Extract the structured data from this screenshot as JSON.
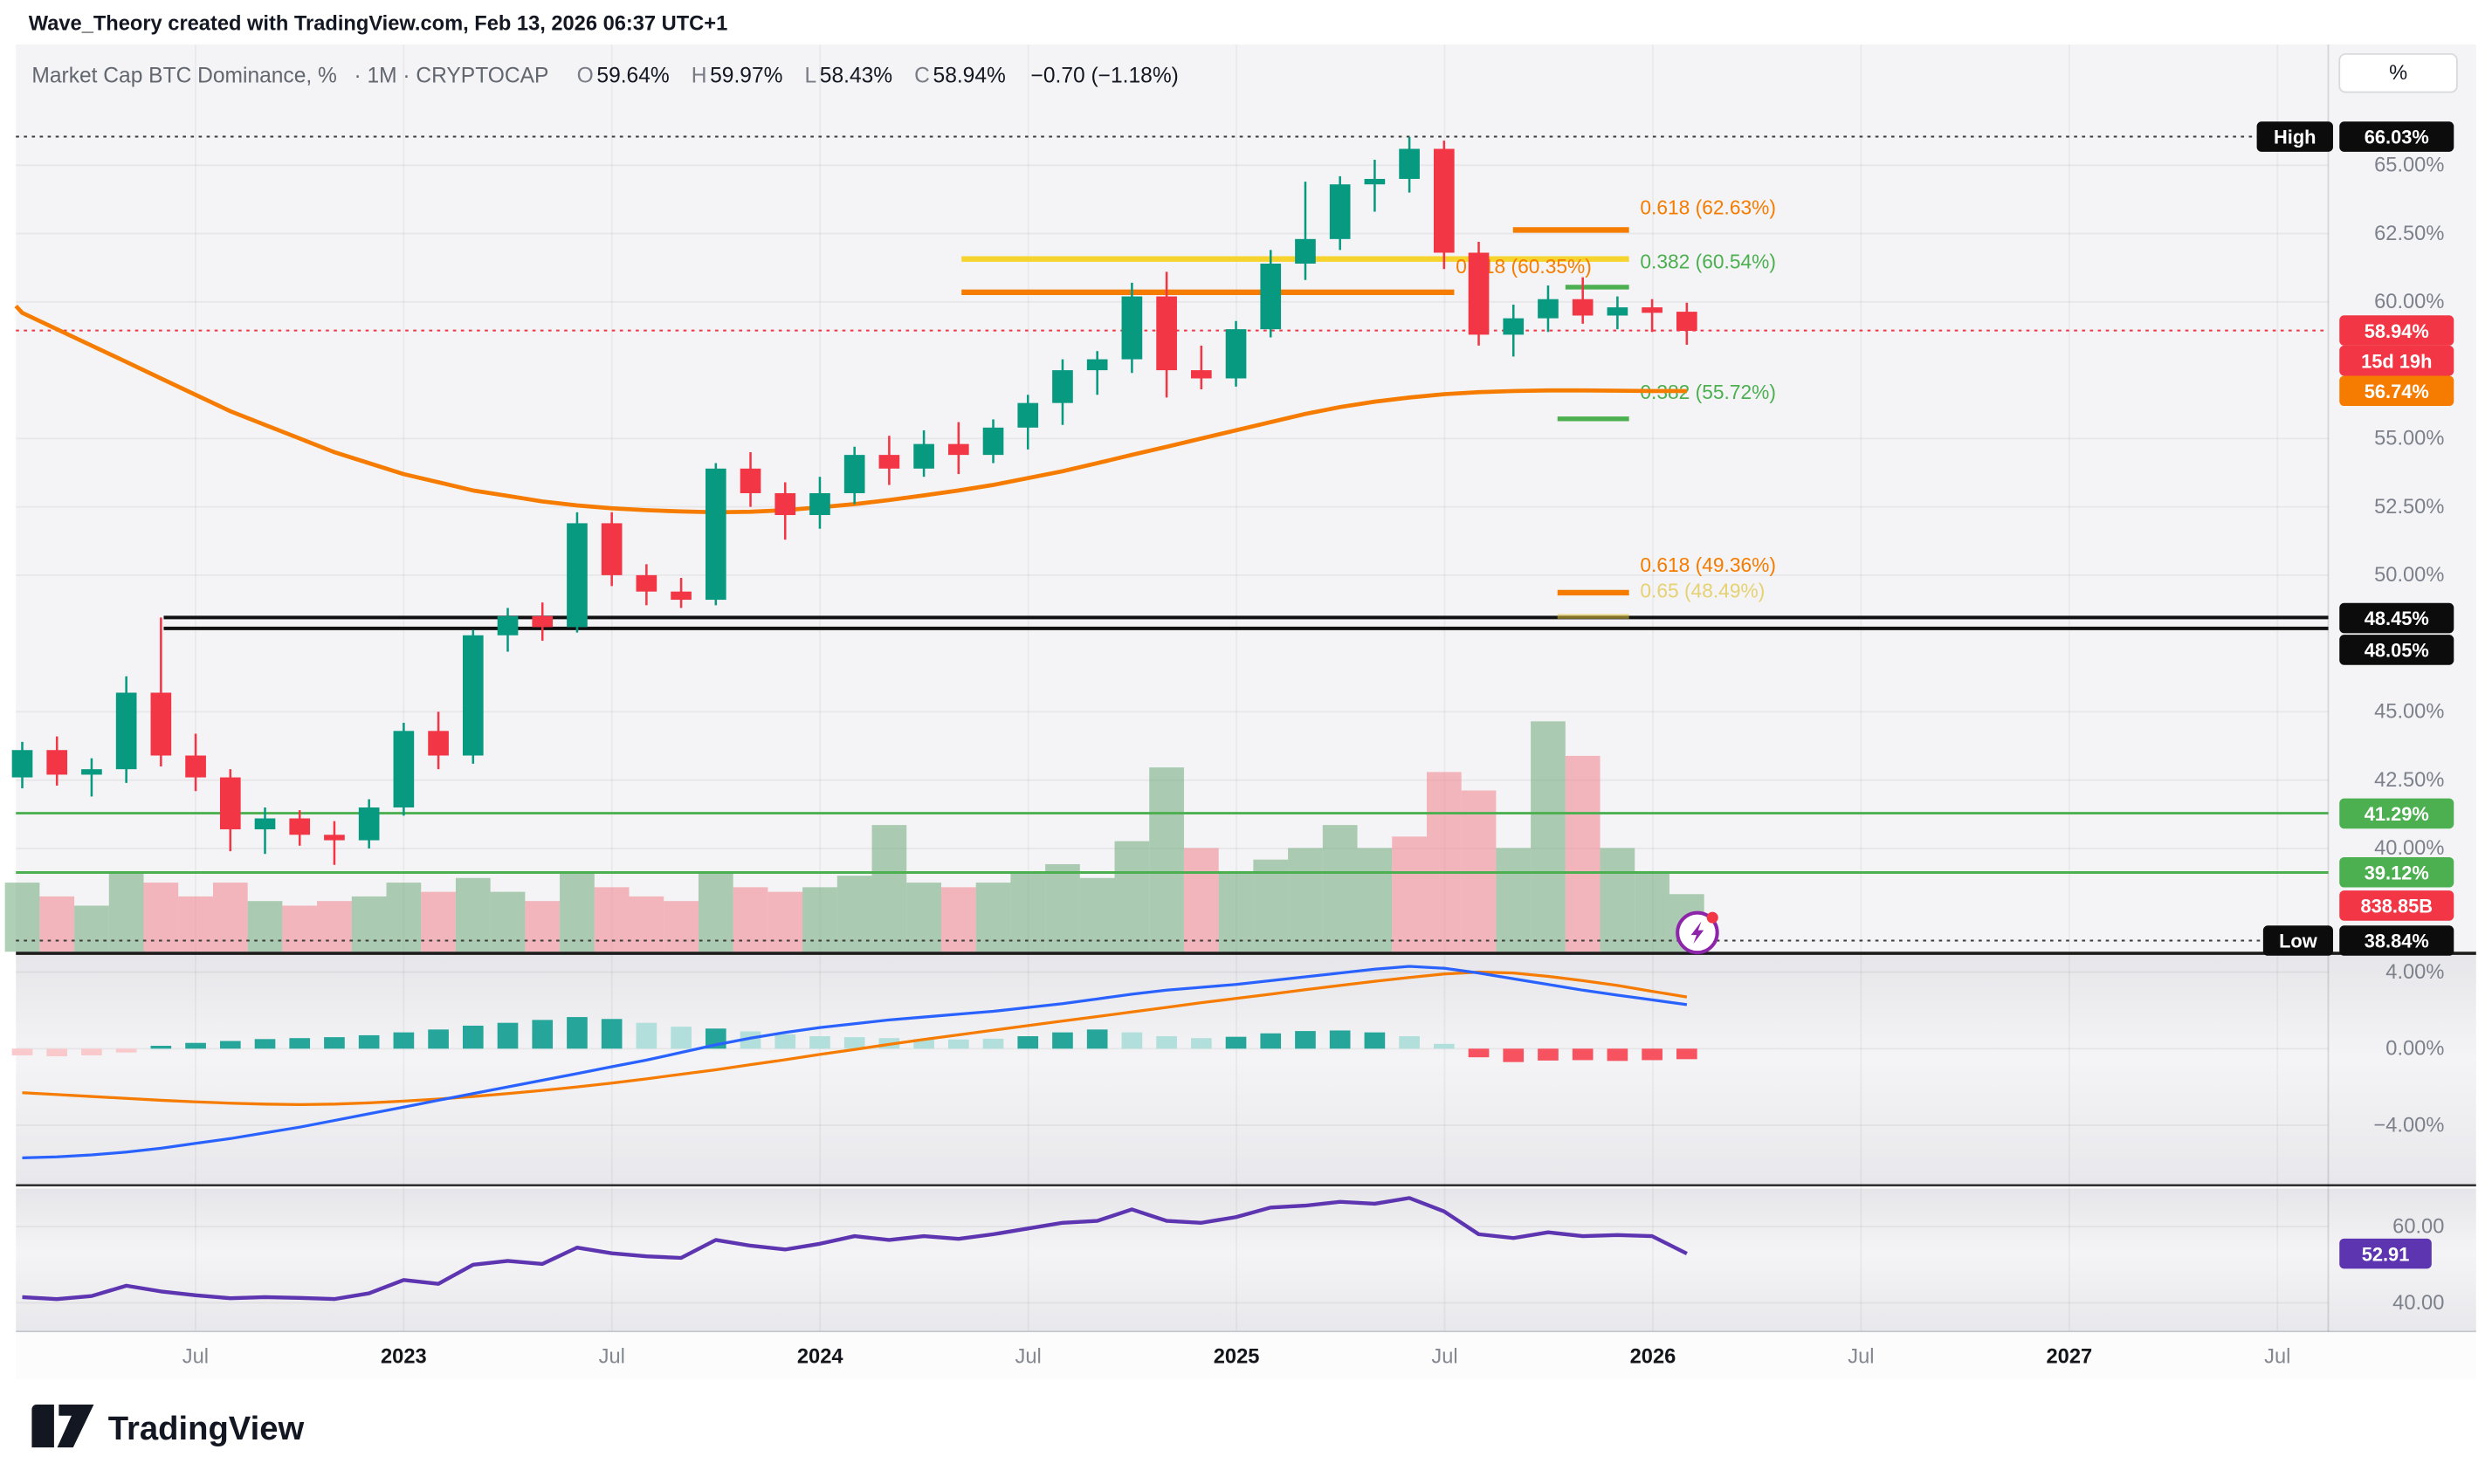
{
  "watermark": "Wave_Theory created with TradingView.com, Feb 13, 2026 06:37 UTC+1",
  "legend": {
    "symbol": "Market Cap BTC Dominance, %",
    "meta": "· 1M · CRYPTOCAP",
    "o_label": "O",
    "o_value": "59.64%",
    "h_label": "H",
    "h_value": "59.97%",
    "l_label": "L",
    "l_value": "58.43%",
    "c_label": "C",
    "c_value": "58.94%",
    "change": "−0.70 (−1.18%)"
  },
  "price_scale": {
    "unit_button": "%",
    "ticks": [
      {
        "text": "65.00%",
        "price": 65
      },
      {
        "text": "62.50%",
        "price": 62.5
      },
      {
        "text": "60.00%",
        "price": 60
      },
      {
        "text": "55.00%",
        "price": 55
      },
      {
        "text": "52.50%",
        "price": 52.5
      },
      {
        "text": "50.00%",
        "price": 50
      },
      {
        "text": "45.00%",
        "price": 45
      },
      {
        "text": "42.50%",
        "price": 42.5
      },
      {
        "text": "40.00%",
        "price": 40
      }
    ],
    "badges": [
      {
        "text": "High",
        "y": 86,
        "bg": "#0c0c0c",
        "x": 1420,
        "w": 48
      },
      {
        "text": "66.03%",
        "y": 86,
        "bg": "#0c0c0c"
      },
      {
        "text": "58.94%",
        "y": 208,
        "bg": "#f23645"
      },
      {
        "text": "15d 19h",
        "y": 227,
        "bg": "#f23645"
      },
      {
        "text": "56.74%",
        "y": 246,
        "bg": "#f57c00"
      },
      {
        "text": "48.45%",
        "y": 389,
        "bg": "#0c0c0c"
      },
      {
        "text": "48.05%",
        "y": 409,
        "bg": "#0c0c0c"
      },
      {
        "text": "41.29%",
        "y": 512,
        "bg": "#4caf50"
      },
      {
        "text": "39.12%",
        "y": 549,
        "bg": "#4caf50"
      },
      {
        "text": "838.85B",
        "y": 570,
        "bg": "#f23645"
      },
      {
        "text": "Low",
        "y": 592,
        "bg": "#0c0c0c",
        "x": 1424,
        "w": 44
      },
      {
        "text": "38.84%",
        "y": 592,
        "bg": "#0c0c0c"
      }
    ]
  },
  "time_axis": {
    "labels": [
      {
        "text": "Jul",
        "x": 123,
        "major": false
      },
      {
        "text": "2023",
        "x": 254,
        "major": true
      },
      {
        "text": "Jul",
        "x": 385,
        "major": false
      },
      {
        "text": "2024",
        "x": 516,
        "major": true
      },
      {
        "text": "Jul",
        "x": 647,
        "major": false
      },
      {
        "text": "2025",
        "x": 778,
        "major": true
      },
      {
        "text": "Jul",
        "x": 909,
        "major": false
      },
      {
        "text": "2026",
        "x": 1040,
        "major": true
      },
      {
        "text": "Jul",
        "x": 1171,
        "major": false
      },
      {
        "text": "2027",
        "x": 1302,
        "major": true
      },
      {
        "text": "Jul",
        "x": 1433,
        "major": false
      }
    ]
  },
  "footer": {
    "logo_text": "TradingView"
  },
  "chart_data": [
    {
      "type": "candlestick",
      "title": "Market Cap BTC Dominance, % · 1M · CRYPTOCAP",
      "interval": "1M",
      "start_month": "2022-02",
      "high": 66.03,
      "low": 38.84,
      "last_close": 58.94,
      "countdown": "15d 19h",
      "ohlc_header": {
        "o": 59.64,
        "h": 59.97,
        "l": 58.43,
        "c": 58.94,
        "change": -0.7,
        "change_pct": -1.18
      },
      "candles": [
        [
          42.6,
          43.9,
          42.2,
          43.6
        ],
        [
          43.6,
          44.1,
          42.3,
          42.7
        ],
        [
          42.7,
          43.3,
          41.9,
          42.9
        ],
        [
          42.9,
          46.3,
          42.4,
          45.7
        ],
        [
          45.7,
          48.45,
          43.0,
          43.4
        ],
        [
          43.4,
          44.2,
          42.1,
          42.6
        ],
        [
          42.6,
          42.9,
          39.9,
          40.7
        ],
        [
          40.7,
          41.5,
          39.8,
          41.1
        ],
        [
          41.1,
          41.4,
          40.1,
          40.5
        ],
        [
          40.5,
          41.0,
          39.4,
          40.3
        ],
        [
          40.3,
          41.8,
          40.0,
          41.5
        ],
        [
          41.5,
          44.6,
          41.2,
          44.3
        ],
        [
          44.3,
          45.0,
          42.9,
          43.4
        ],
        [
          43.4,
          48.0,
          43.1,
          47.8
        ],
        [
          47.8,
          48.8,
          47.2,
          48.5
        ],
        [
          48.5,
          49.0,
          47.6,
          48.1
        ],
        [
          48.1,
          52.3,
          47.9,
          51.9
        ],
        [
          51.9,
          52.3,
          49.6,
          50.0
        ],
        [
          50.0,
          50.4,
          48.9,
          49.4
        ],
        [
          49.4,
          49.9,
          48.8,
          49.1
        ],
        [
          49.1,
          54.1,
          48.9,
          53.9
        ],
        [
          53.9,
          54.5,
          52.5,
          53.0
        ],
        [
          53.0,
          53.4,
          51.3,
          52.2
        ],
        [
          52.2,
          53.6,
          51.7,
          53.0
        ],
        [
          53.0,
          54.7,
          52.6,
          54.4
        ],
        [
          54.4,
          55.1,
          53.3,
          53.9
        ],
        [
          53.9,
          55.3,
          53.6,
          54.8
        ],
        [
          54.8,
          55.6,
          53.7,
          54.4
        ],
        [
          54.4,
          55.7,
          54.1,
          55.4
        ],
        [
          55.4,
          56.6,
          54.6,
          56.3
        ],
        [
          56.3,
          57.9,
          55.5,
          57.5
        ],
        [
          57.5,
          58.2,
          56.6,
          57.9
        ],
        [
          57.9,
          60.7,
          57.4,
          60.2
        ],
        [
          60.2,
          61.1,
          56.5,
          57.5
        ],
        [
          57.5,
          58.4,
          56.8,
          57.2
        ],
        [
          57.2,
          59.3,
          56.9,
          59.0
        ],
        [
          59.0,
          61.9,
          58.7,
          61.4
        ],
        [
          61.4,
          64.4,
          60.8,
          62.3
        ],
        [
          62.3,
          64.6,
          61.9,
          64.3
        ],
        [
          64.3,
          65.2,
          63.3,
          64.5
        ],
        [
          64.5,
          66.03,
          64.0,
          65.6
        ],
        [
          65.6,
          65.9,
          61.2,
          61.8
        ],
        [
          61.8,
          62.2,
          58.4,
          58.8
        ],
        [
          58.8,
          59.9,
          58.0,
          59.4
        ],
        [
          59.4,
          60.6,
          58.9,
          60.1
        ],
        [
          60.1,
          60.9,
          59.2,
          59.5
        ],
        [
          59.5,
          60.2,
          59.0,
          59.8
        ],
        [
          59.8,
          60.1,
          58.9,
          59.6
        ],
        [
          59.64,
          59.97,
          58.43,
          58.94
        ]
      ],
      "volume": [
        [
          0.3,
          "g"
        ],
        [
          0.24,
          "r"
        ],
        [
          0.2,
          "g"
        ],
        [
          0.34,
          "g"
        ],
        [
          0.3,
          "r"
        ],
        [
          0.24,
          "r"
        ],
        [
          0.3,
          "r"
        ],
        [
          0.22,
          "g"
        ],
        [
          0.2,
          "r"
        ],
        [
          0.22,
          "r"
        ],
        [
          0.24,
          "g"
        ],
        [
          0.3,
          "g"
        ],
        [
          0.26,
          "r"
        ],
        [
          0.32,
          "g"
        ],
        [
          0.26,
          "g"
        ],
        [
          0.22,
          "r"
        ],
        [
          0.34,
          "g"
        ],
        [
          0.28,
          "r"
        ],
        [
          0.24,
          "r"
        ],
        [
          0.22,
          "r"
        ],
        [
          0.34,
          "g"
        ],
        [
          0.28,
          "r"
        ],
        [
          0.26,
          "r"
        ],
        [
          0.28,
          "g"
        ],
        [
          0.33,
          "g"
        ],
        [
          0.55,
          "g"
        ],
        [
          0.3,
          "g"
        ],
        [
          0.28,
          "r"
        ],
        [
          0.3,
          "g"
        ],
        [
          0.34,
          "g"
        ],
        [
          0.38,
          "g"
        ],
        [
          0.32,
          "g"
        ],
        [
          0.48,
          "g"
        ],
        [
          0.8,
          "g"
        ],
        [
          0.45,
          "r"
        ],
        [
          0.35,
          "g"
        ],
        [
          0.4,
          "g"
        ],
        [
          0.45,
          "g"
        ],
        [
          0.55,
          "g"
        ],
        [
          0.45,
          "g"
        ],
        [
          0.5,
          "r"
        ],
        [
          0.78,
          "r"
        ],
        [
          0.7,
          "r"
        ],
        [
          0.45,
          "g"
        ],
        [
          1.0,
          "g"
        ],
        [
          0.85,
          "r"
        ],
        [
          0.45,
          "g"
        ],
        [
          0.35,
          "g"
        ],
        [
          0.25,
          "g"
        ]
      ],
      "ma_orange": [
        59.6,
        59.0,
        58.4,
        57.8,
        57.2,
        56.6,
        56.0,
        55.5,
        55.0,
        54.5,
        54.1,
        53.7,
        53.4,
        53.1,
        52.9,
        52.7,
        52.55,
        52.45,
        52.38,
        52.33,
        52.3,
        52.32,
        52.38,
        52.48,
        52.6,
        52.75,
        52.92,
        53.1,
        53.3,
        53.55,
        53.8,
        54.1,
        54.4,
        54.7,
        55.0,
        55.3,
        55.6,
        55.9,
        56.15,
        56.35,
        56.5,
        56.62,
        56.7,
        56.74,
        56.76,
        56.76,
        56.75,
        56.74,
        56.74
      ],
      "ma_last_value": 56.74,
      "levels": [
        {
          "label": "0.618 (62.63%)",
          "price": 62.63,
          "color": "#f57c00",
          "x1": 952,
          "x2": 1025,
          "label_x": 1032,
          "label_y": 135,
          "thick": 3.5
        },
        {
          "label": "",
          "price": 61.57,
          "color": "#f6d32d",
          "x1": 605,
          "x2": 1025,
          "thick": 3.5
        },
        {
          "label": "0.618 (60.35%)",
          "price": 60.35,
          "color": "#f57c00",
          "x1": 605,
          "x2": 915,
          "label_x": 916,
          "label_y": 172,
          "thick": 3.5
        },
        {
          "label": "0.382 (60.54%)",
          "price": 60.54,
          "color": "#4caf50",
          "x1": 985,
          "x2": 1025,
          "label_x": 1032,
          "label_y": 169,
          "thick": 3
        },
        {
          "label": "0.382 (55.72%)",
          "price": 55.72,
          "color": "#4caf50",
          "x1": 980,
          "x2": 1025,
          "label_x": 1032,
          "label_y": 251,
          "thick": 3
        },
        {
          "label": "0.618 (49.36%)",
          "price": 49.36,
          "color": "#f57c00",
          "x1": 980,
          "x2": 1025,
          "label_x": 1032,
          "label_y": 360,
          "thick": 3.5
        },
        {
          "label": "0.65 (48.49%)",
          "price": 48.49,
          "color": "#e0c23c",
          "x1": 980,
          "x2": 1025,
          "label_x": 1032,
          "label_y": 376,
          "thick": 3,
          "faded": true
        }
      ],
      "rays": [
        {
          "price": 48.45
        },
        {
          "price": 48.05
        }
      ],
      "hlines": [
        {
          "price": 41.29,
          "color": "#4caf50"
        },
        {
          "price": 39.12,
          "color": "#4caf50"
        }
      ],
      "dotted": [
        {
          "y": 86,
          "color": "#3c3c3c",
          "label": "High 66.03%"
        },
        {
          "y": 592,
          "color": "#3c3c3c",
          "label": "Low 38.84%"
        },
        {
          "y": 208,
          "color": "#f23645",
          "label": "last price 58.94%"
        }
      ],
      "volume_last_label": "838.85B"
    },
    {
      "type": "macd_histogram",
      "hist": [
        -0.35,
        -0.4,
        -0.35,
        -0.2,
        0.15,
        0.3,
        0.4,
        0.5,
        0.55,
        0.6,
        0.7,
        0.85,
        1.0,
        1.2,
        1.35,
        1.5,
        1.65,
        1.55,
        1.35,
        1.15,
        1.05,
        0.9,
        0.75,
        0.65,
        0.6,
        0.55,
        0.5,
        0.48,
        0.52,
        0.65,
        0.85,
        1.0,
        0.85,
        0.65,
        0.55,
        0.62,
        0.8,
        0.92,
        0.95,
        0.85,
        0.65,
        0.25,
        -0.45,
        -0.7,
        -0.62,
        -0.6,
        -0.64,
        -0.6,
        -0.55
      ],
      "hist_colors": [
        "p",
        "p",
        "p",
        "p",
        "t",
        "t",
        "t",
        "t",
        "t",
        "t",
        "t",
        "t",
        "t",
        "t",
        "t",
        "t",
        "t",
        "t",
        "l",
        "l",
        "t",
        "l",
        "l",
        "l",
        "l",
        "l",
        "l",
        "l",
        "l",
        "t",
        "t",
        "t",
        "l",
        "l",
        "l",
        "t",
        "t",
        "t",
        "t",
        "t",
        "l",
        "l",
        "r",
        "r",
        "r",
        "r",
        "r",
        "r",
        "r"
      ],
      "macd": [
        -5.7,
        -5.65,
        -5.55,
        -5.4,
        -5.2,
        -4.95,
        -4.7,
        -4.4,
        -4.1,
        -3.75,
        -3.4,
        -3.05,
        -2.7,
        -2.35,
        -2.0,
        -1.65,
        -1.3,
        -0.95,
        -0.6,
        -0.2,
        0.2,
        0.55,
        0.85,
        1.1,
        1.3,
        1.5,
        1.65,
        1.8,
        1.95,
        2.15,
        2.35,
        2.6,
        2.85,
        3.05,
        3.2,
        3.35,
        3.55,
        3.75,
        3.95,
        4.15,
        4.3,
        4.2,
        3.95,
        3.65,
        3.35,
        3.05,
        2.8,
        2.55,
        2.3
      ],
      "signal": [
        -2.3,
        -2.4,
        -2.5,
        -2.6,
        -2.7,
        -2.78,
        -2.85,
        -2.9,
        -2.92,
        -2.9,
        -2.83,
        -2.74,
        -2.63,
        -2.5,
        -2.35,
        -2.18,
        -2.0,
        -1.8,
        -1.58,
        -1.34,
        -1.1,
        -0.84,
        -0.58,
        -0.3,
        -0.04,
        0.22,
        0.48,
        0.72,
        0.96,
        1.2,
        1.44,
        1.68,
        1.92,
        2.16,
        2.4,
        2.62,
        2.85,
        3.08,
        3.3,
        3.52,
        3.72,
        3.9,
        4.0,
        3.95,
        3.78,
        3.55,
        3.3,
        3.0,
        2.7
      ],
      "y_ticks": [
        {
          "text": "4.00%",
          "v": 4
        },
        {
          "text": "0.00%",
          "v": 0
        },
        {
          "text": "−4.00%",
          "v": -4
        }
      ]
    },
    {
      "type": "line",
      "name": "rsi",
      "color": "#5e35b1",
      "values": [
        41.5,
        41.0,
        41.8,
        44.5,
        43.0,
        42.0,
        41.2,
        41.5,
        41.3,
        41.0,
        42.5,
        46.0,
        45.0,
        50.0,
        51.0,
        50.2,
        54.5,
        53.0,
        52.2,
        51.8,
        56.5,
        55.0,
        54.0,
        55.5,
        57.5,
        56.5,
        57.5,
        56.8,
        58.0,
        59.5,
        61.0,
        61.5,
        64.5,
        61.5,
        61.0,
        62.5,
        65.0,
        65.5,
        66.5,
        66.0,
        67.5,
        64.0,
        58.0,
        57.0,
        58.5,
        57.5,
        57.8,
        57.5,
        52.91
      ],
      "last_label": "52.91",
      "badge_color": "#5e35b1",
      "y_ticks": [
        {
          "text": "60.00",
          "v": 60
        },
        {
          "text": "40.00",
          "v": 40
        }
      ]
    }
  ]
}
